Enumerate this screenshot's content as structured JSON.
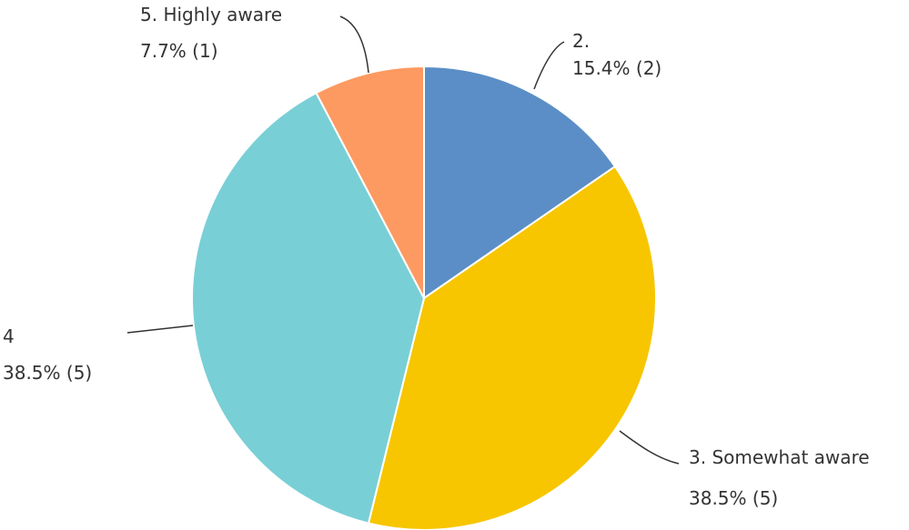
{
  "chart_data": {
    "type": "pie",
    "slices": [
      {
        "label": "2.",
        "percent_text": "15.4% (2)",
        "count": 2,
        "percent": 15.4,
        "color": "#5b8ec6"
      },
      {
        "label": "3. Somewhat aware",
        "percent_text": "38.5% (5)",
        "count": 5,
        "percent": 38.5,
        "color": "#f7c600"
      },
      {
        "label": "4",
        "percent_text": "38.5% (5)",
        "count": 5,
        "percent": 38.5,
        "color": "#79cfd6"
      },
      {
        "label": "5. Highly aware",
        "percent_text": "7.7% (1)",
        "count": 1,
        "percent": 7.7,
        "color": "#fd9a61"
      }
    ],
    "start_angle_deg": 0,
    "direction": "clockwise"
  }
}
